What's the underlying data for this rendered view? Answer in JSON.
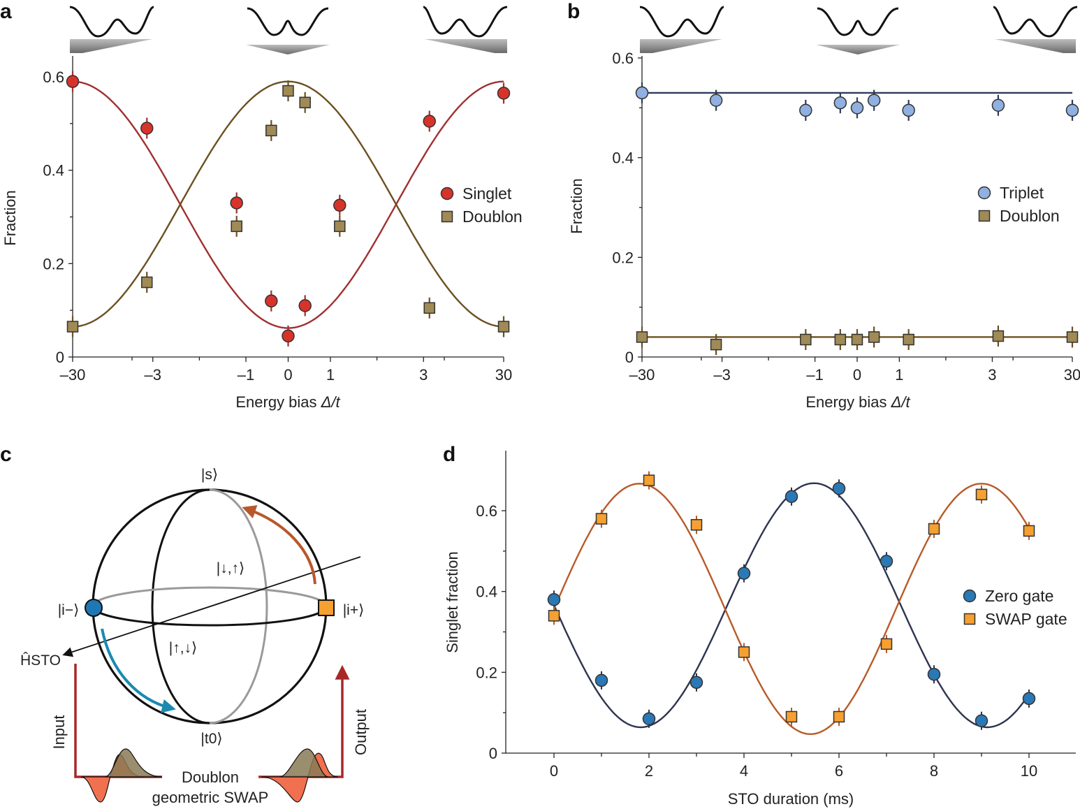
{
  "panels": [
    {
      "letter": "a"
    },
    {
      "letter": "b"
    },
    {
      "letter": "c"
    },
    {
      "letter": "d"
    }
  ],
  "chart_data": [
    {
      "panel": "a",
      "type": "scatter",
      "xlabel_prefix": "Energy bias ",
      "xlabel_math": "Δ/t",
      "ylabel": "Fraction",
      "x_scale": "nonlinear",
      "x_ticks": [
        "–30",
        "–3",
        "–1",
        "0",
        "1",
        "3",
        "30"
      ],
      "y_ticks": [
        "0",
        "0.2",
        "0.4",
        "0.6"
      ],
      "ylim": [
        0,
        0.6
      ],
      "legend_position": "right",
      "x": [
        "–30",
        "–5",
        "–1.2",
        "–0.4",
        "0",
        "0.4",
        "1.2",
        "5",
        "30"
      ],
      "series": [
        {
          "name": "Singlet",
          "marker": "circle",
          "color": "#d8332a",
          "values": [
            0.59,
            0.49,
            0.33,
            0.12,
            0.045,
            0.11,
            0.325,
            0.505,
            0.565
          ],
          "fit": "cosine"
        },
        {
          "name": "Doublon",
          "marker": "square",
          "color": "#a08a55",
          "values": [
            0.065,
            0.16,
            0.28,
            0.485,
            0.57,
            0.545,
            0.28,
            0.105,
            0.065
          ],
          "fit": "cosine"
        }
      ]
    },
    {
      "panel": "b",
      "type": "scatter",
      "xlabel_prefix": "Energy bias ",
      "xlabel_math": "Δ/t",
      "ylabel": "Fraction",
      "x_scale": "nonlinear",
      "x_ticks": [
        "–30",
        "–3",
        "–1",
        "0",
        "1",
        "3",
        "30"
      ],
      "y_ticks": [
        "0",
        "0.2",
        "0.4",
        "0.6"
      ],
      "ylim": [
        0,
        0.6
      ],
      "legend_position": "right",
      "x": [
        "–30",
        "–5",
        "–1.2",
        "–0.4",
        "0",
        "0.4",
        "1.2",
        "5",
        "30"
      ],
      "series": [
        {
          "name": "Triplet",
          "marker": "circle",
          "color": "#8fb0e0",
          "values": [
            0.53,
            0.515,
            0.495,
            0.51,
            0.5,
            0.515,
            0.495,
            0.505,
            0.495
          ],
          "fit_constant": 0.53
        },
        {
          "name": "Doublon",
          "marker": "square",
          "color": "#a08a55",
          "values": [
            0.04,
            0.025,
            0.035,
            0.035,
            0.035,
            0.04,
            0.035,
            0.042,
            0.04
          ],
          "fit_constant": 0.04
        }
      ]
    },
    {
      "panel": "d",
      "type": "scatter",
      "xlabel": "STO duration (ms)",
      "ylabel": "Singlet fraction",
      "x_ticks": [
        "0",
        "2",
        "4",
        "6",
        "8",
        "10"
      ],
      "y_ticks": [
        "0",
        "0.2",
        "0.4",
        "0.6"
      ],
      "xlim": [
        -1,
        11
      ],
      "ylim": [
        0,
        0.7
      ],
      "legend_position": "right",
      "x": [
        0,
        1,
        2,
        3,
        4,
        5,
        6,
        7,
        8,
        9,
        10
      ],
      "series": [
        {
          "name": "Zero gate",
          "marker": "circle",
          "color": "#2a78b5",
          "values": [
            0.38,
            0.18,
            0.085,
            0.175,
            0.445,
            0.635,
            0.655,
            0.475,
            0.195,
            0.08,
            0.135
          ],
          "fit": "sinusoid"
        },
        {
          "name": "SWAP gate",
          "marker": "square",
          "color": "#f5a030",
          "values": [
            0.34,
            0.58,
            0.675,
            0.565,
            0.25,
            0.09,
            0.09,
            0.27,
            0.555,
            0.64,
            0.55
          ],
          "fit": "sinusoid"
        }
      ]
    }
  ],
  "diagram": {
    "state_s": "|s⟩",
    "state_t0": "|t0⟩",
    "state_i_minus": "|i−⟩",
    "state_i_plus": "|i+⟩",
    "state_down_up": "|↓,↑⟩",
    "state_up_down": "|↑,↓⟩",
    "hamiltonian": "ĤSTO",
    "input_label": "Input",
    "output_label": "Output",
    "caption_line1": "Doublon",
    "caption_line2": "geometric SWAP"
  },
  "colors": {
    "singlet": "#d8332a",
    "doublon": "#a08a55",
    "doublon_fit": "#6b5020",
    "singlet_fit": "#a03030",
    "triplet": "#8fb0e0",
    "triplet_fit": "#2e3a5c",
    "zero_gate": "#2a78b5",
    "zero_fit": "#2e3450",
    "swap_gate": "#f5a030",
    "swap_fit": "#b85a28",
    "io_arrow": "#a82828",
    "path_blue": "#1a8ab0",
    "path_orange": "#b8582a"
  }
}
